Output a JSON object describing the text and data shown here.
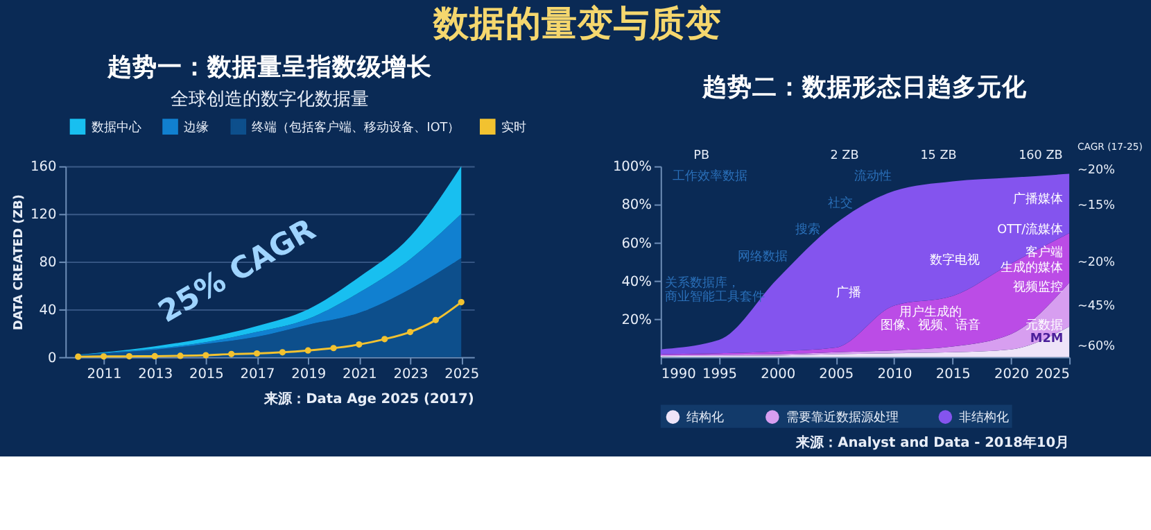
{
  "chart_data": [
    {
      "type": "area",
      "title": "趋势一：数据量呈指数级增长",
      "subtitle": "全球创造的数字化数据量",
      "ylabel": "DATA CREATED (ZB)",
      "stacked": true,
      "legend": "top",
      "grid": "y",
      "x": [
        2010,
        2011,
        2013,
        2015,
        2017,
        2019,
        2021,
        2023,
        2025
      ],
      "xlim": [
        2009.5,
        2025.5
      ],
      "xticks": [
        2011,
        2013,
        2015,
        2017,
        2019,
        2021,
        2023,
        2025
      ],
      "ylim": [
        0,
        160
      ],
      "yticks": [
        0,
        40,
        80,
        120,
        160
      ],
      "series": [
        {
          "name": "终端（包括客户端、移动设备、IOT）",
          "color": "#0d4f8c",
          "values": [
            1.5,
            3,
            6,
            11,
            17,
            27,
            37,
            57,
            83
          ]
        },
        {
          "name": "边缘",
          "color": "#1180d0",
          "values": [
            0.3,
            0.5,
            1,
            1.5,
            4,
            5,
            17,
            25,
            37
          ]
        },
        {
          "name": "数据中心",
          "color": "#18bff0",
          "values": [
            0.2,
            0.5,
            2,
            3.5,
            5,
            8,
            13,
            19,
            40
          ]
        },
        {
          "name": "实时",
          "type": "line",
          "marker": "circle",
          "color": "#f2c230",
          "x": [
            2010,
            2011,
            2012,
            2013,
            2014,
            2015,
            2016,
            2017,
            2018,
            2019,
            2020,
            2021,
            2022,
            2023,
            2024,
            2025
          ],
          "values": [
            0.3,
            0.5,
            0.6,
            0.7,
            1,
            1.5,
            2.5,
            3,
            4,
            5.5,
            7.5,
            10.5,
            15,
            21,
            31,
            46
          ]
        }
      ],
      "annotations": [
        "数据的量变与质变",
        "25% CAGR",
        "来源：Data Age 2025 (2017)"
      ]
    },
    {
      "type": "area",
      "title": "趋势二：数据形态日趋多元化",
      "stacked": true,
      "legend": "bottom",
      "grid": false,
      "x": [
        1990,
        1995,
        2000,
        2005,
        2010,
        2015,
        2020,
        2025
      ],
      "xlim": [
        1990,
        2025
      ],
      "xticks": [
        1990,
        1995,
        2000,
        2005,
        2010,
        2015,
        2020,
        2025
      ],
      "ylim": [
        0,
        100
      ],
      "yticks": [
        {
          "value": 20,
          "label": "20%"
        },
        {
          "value": 40,
          "label": "40%"
        },
        {
          "value": 60,
          "label": "60%"
        },
        {
          "value": 80,
          "label": "80%"
        },
        {
          "value": 100,
          "label": "100%"
        }
      ],
      "series": [
        {
          "name": "结构化",
          "color": "#eee4f8",
          "values": [
            0.5,
            0.6,
            0.8,
            1.5,
            2,
            2.5,
            4,
            16
          ]
        },
        {
          "name": "需要靠近数据源处理",
          "color": "#d79ef0",
          "values": [
            0.5,
            0.6,
            0.7,
            1,
            1.5,
            3,
            8,
            23
          ]
        },
        {
          "color": "#bb4ce6",
          "values": [
            0.5,
            0.8,
            1.5,
            2.5,
            23.5,
            26.5,
            37,
            26
          ]
        },
        {
          "name": "非结构化",
          "color": "#8454ee",
          "values": [
            2.5,
            7,
            38,
            65,
            60,
            60,
            45,
            31
          ]
        }
      ],
      "annotations": [
        "工作效率数据",
        "流动性",
        "社交",
        "搜索",
        "网络数据",
        "关系数据库，",
        "商业智能工具套件",
        "广播",
        "数字电视",
        "用户生成的",
        "图像、视频、语音",
        "广播媒体",
        "OTT/流媒体",
        "客户端",
        "生成的媒体",
        "视频监控",
        "元数据",
        "M2M",
        "CAGR (17-25)",
        "~20%",
        "~15%",
        "~20%",
        "~45%",
        "~60%",
        "PB",
        "2 ZB",
        "15 ZB",
        "160 ZB",
        "来源：Analyst and Data - 2018年10月"
      ]
    }
  ]
}
